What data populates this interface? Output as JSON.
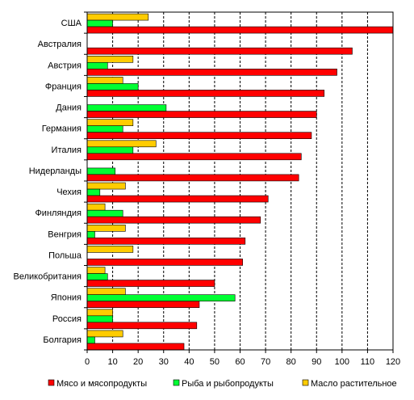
{
  "chart_data": {
    "type": "bar",
    "orientation": "horizontal",
    "categories": [
      "США",
      "Австралия",
      "Австрия",
      "Франция",
      "Дания",
      "Германия",
      "Италия",
      "Нидерланды",
      "Чехия",
      "Финляндия",
      "Венгрия",
      "Польша",
      "Великобритания",
      "Япония",
      "Россия",
      "Болгария"
    ],
    "series": [
      {
        "name": "Мясо и мясопродукты",
        "color": "#ff0000",
        "values": [
          120,
          104,
          98,
          93,
          90,
          88,
          84,
          83,
          71,
          68,
          62,
          61,
          50,
          44,
          43,
          38
        ]
      },
      {
        "name": "Рыба и рыбопродукты",
        "color": "#00ff33",
        "values": [
          10,
          0,
          8,
          20,
          31,
          14,
          18,
          11,
          5,
          14,
          3,
          0,
          8,
          58,
          10,
          3
        ]
      },
      {
        "name": "Масло растительное",
        "color": "#ffcc00",
        "values": [
          24,
          0,
          18,
          14,
          0,
          18,
          27,
          0,
          15,
          7,
          15,
          18,
          7,
          15,
          10,
          14
        ]
      }
    ],
    "xlim": [
      0,
      120
    ],
    "xticks": [
      0,
      10,
      20,
      30,
      40,
      50,
      60,
      70,
      80,
      90,
      100,
      110,
      120
    ],
    "grid": "vertical-dashed",
    "legend_position": "bottom"
  }
}
